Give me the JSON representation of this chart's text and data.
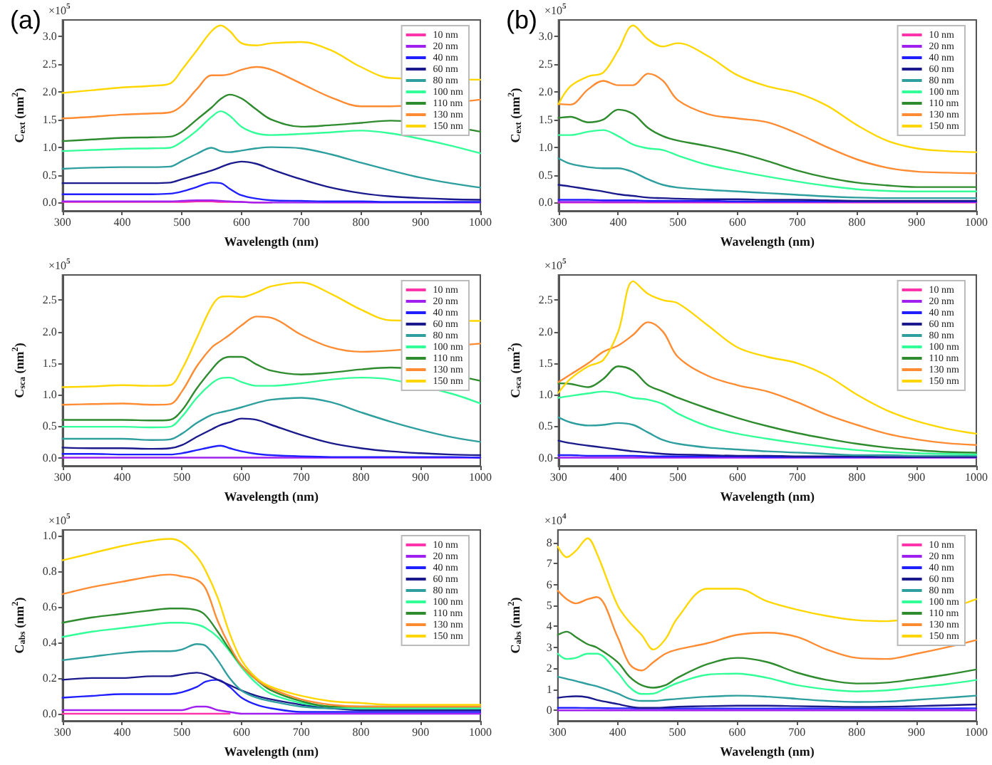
{
  "chart_data": [
    {
      "type": "line",
      "title": "(a)",
      "xlabel": "Wavelength (nm)",
      "ylabel": "C$_{ext}$ (nm$^{2}$)",
      "annotations": [
        "×10$^{5}$"
      ],
      "legend": "top right",
      "marker": "none",
      "xlim": [
        300,
        1000
      ],
      "xticks": [
        300,
        400,
        500,
        600,
        700,
        800,
        900,
        1000
      ],
      "ylim": [
        -0.15,
        3.3
      ],
      "yticks": [
        {
          "value": 0,
          "label": "0.0"
        },
        {
          "value": 0.5,
          "label": "0.5"
        },
        {
          "value": 1,
          "label": "1.0"
        },
        {
          "value": 1.5,
          "label": "1.5"
        },
        {
          "value": 2,
          "label": "2.0"
        },
        {
          "value": 2.5,
          "label": "2.5"
        },
        {
          "value": 3,
          "label": "3.0"
        }
      ],
      "x": [
        300,
        350,
        400,
        450,
        480,
        500,
        525,
        550,
        565,
        580,
        600,
        625,
        650,
        700,
        750,
        800,
        850,
        900,
        950,
        1000
      ],
      "series": [
        {
          "name": "10 nm",
          "color": "#ff33aa",
          "values": [
            0.01,
            0.01,
            0.01,
            0.01,
            0.01,
            0.01,
            0.02,
            0.02,
            0.01,
            0.01,
            0.01,
            0,
            0,
            null,
            null,
            null,
            null,
            null,
            null,
            null
          ]
        },
        {
          "name": "20 nm",
          "color": "#a020f0",
          "values": [
            0.02,
            0.02,
            0.02,
            0.02,
            0.02,
            0.03,
            0.04,
            0.04,
            0.03,
            0.02,
            0.01,
            0,
            0,
            0,
            0,
            0,
            0,
            0,
            0,
            0
          ]
        },
        {
          "name": "40 nm",
          "color": "#1f1fff",
          "values": [
            0.15,
            0.15,
            0.15,
            0.15,
            0.16,
            0.2,
            0.28,
            0.36,
            0.35,
            0.25,
            0.13,
            0.07,
            0.04,
            0.03,
            0.02,
            0.02,
            0.01,
            0.01,
            0.01,
            0.01
          ]
        },
        {
          "name": "60 nm",
          "color": "#1a1a8c",
          "values": [
            0.35,
            0.35,
            0.35,
            0.35,
            0.36,
            0.42,
            0.5,
            0.58,
            0.64,
            0.7,
            0.74,
            0.7,
            0.6,
            0.42,
            0.27,
            0.17,
            0.11,
            0.08,
            0.06,
            0.05
          ]
        },
        {
          "name": "80 nm",
          "color": "#2e9e9e",
          "values": [
            0.61,
            0.63,
            0.64,
            0.64,
            0.65,
            0.75,
            0.88,
            0.99,
            0.93,
            0.91,
            0.94,
            0.98,
            1.0,
            0.98,
            0.87,
            0.72,
            0.58,
            0.45,
            0.35,
            0.27
          ]
        },
        {
          "name": "100 nm",
          "color": "#33ff99",
          "values": [
            0.93,
            0.95,
            0.97,
            0.98,
            0.99,
            1.1,
            1.3,
            1.55,
            1.65,
            1.57,
            1.37,
            1.25,
            1.22,
            1.24,
            1.27,
            1.3,
            1.25,
            1.15,
            1.03,
            0.89
          ]
        },
        {
          "name": "110 nm",
          "color": "#2e8b2e",
          "values": [
            1.11,
            1.14,
            1.17,
            1.18,
            1.19,
            1.28,
            1.5,
            1.72,
            1.87,
            1.95,
            1.88,
            1.68,
            1.5,
            1.37,
            1.4,
            1.44,
            1.48,
            null,
            null,
            1.28
          ]
        },
        {
          "name": "130 nm",
          "color": "#ff8c33",
          "values": [
            1.52,
            1.55,
            1.59,
            1.61,
            1.63,
            1.75,
            2.05,
            2.3,
            2.3,
            2.32,
            2.4,
            2.45,
            2.4,
            2.15,
            1.9,
            1.74,
            1.74,
            null,
            null,
            1.86
          ]
        },
        {
          "name": "150 nm",
          "color": "#ffd700",
          "values": [
            1.98,
            2.03,
            2.08,
            2.11,
            2.15,
            2.4,
            2.75,
            3.1,
            3.2,
            3.1,
            2.88,
            2.84,
            2.88,
            2.9,
            2.75,
            2.45,
            2.25,
            null,
            null,
            2.22
          ]
        }
      ]
    },
    {
      "type": "line",
      "title": "(b)",
      "xlabel": "Wavelength (nm)",
      "ylabel": "C$_{ext}$ (nm$^{2}$)",
      "annotations": [
        "×10$^{5}$"
      ],
      "legend": "top right",
      "marker": "none",
      "xlim": [
        300,
        1000
      ],
      "xticks": [
        300,
        400,
        500,
        600,
        700,
        800,
        900,
        1000
      ],
      "ylim": [
        -0.15,
        3.3
      ],
      "yticks": [
        {
          "value": 0,
          "label": "0.0"
        },
        {
          "value": 0.5,
          "label": "0.5"
        },
        {
          "value": 1,
          "label": "1.0"
        },
        {
          "value": 1.5,
          "label": "1.5"
        },
        {
          "value": 2,
          "label": "2.0"
        },
        {
          "value": 2.5,
          "label": "2.5"
        },
        {
          "value": 3,
          "label": "3.0"
        }
      ],
      "x": [
        300,
        320,
        350,
        375,
        400,
        425,
        450,
        475,
        500,
        550,
        600,
        650,
        700,
        750,
        800,
        850,
        900,
        950,
        1000
      ],
      "series": [
        {
          "name": "10 nm",
          "color": "#ff33aa",
          "values": [
            0,
            0,
            0,
            0,
            0,
            0,
            0,
            0,
            0,
            0,
            0,
            0,
            0,
            0,
            0,
            0,
            0,
            0,
            0
          ]
        },
        {
          "name": "20 nm",
          "color": "#a020f0",
          "values": [
            0.01,
            0.01,
            0.01,
            0.01,
            0.01,
            0.01,
            0.01,
            0.01,
            0.01,
            0.01,
            0.01,
            0.01,
            0.01,
            0.01,
            0.01,
            0.01,
            0.01,
            0.01,
            0.01
          ]
        },
        {
          "name": "40 nm",
          "color": "#1f1fff",
          "values": [
            0.05,
            0.05,
            0.05,
            0.04,
            0.04,
            0.04,
            0.03,
            0.03,
            0.03,
            0.03,
            0.02,
            0.02,
            0.02,
            0.02,
            0.02,
            0.02,
            0.02,
            0.02,
            0.02
          ]
        },
        {
          "name": "60 nm",
          "color": "#1a1a8c",
          "values": [
            0.32,
            0.29,
            0.24,
            0.2,
            0.15,
            0.12,
            0.09,
            0.08,
            0.07,
            0.06,
            0.06,
            0.05,
            0.05,
            0.04,
            0.03,
            0.03,
            0.03,
            0.03,
            0.03
          ]
        },
        {
          "name": "80 nm",
          "color": "#2e9e9e",
          "values": [
            0.8,
            0.7,
            0.64,
            0.62,
            0.62,
            0.55,
            0.42,
            0.32,
            0.27,
            0.23,
            0.2,
            0.17,
            0.14,
            0.11,
            0.09,
            0.08,
            0.08,
            0.08,
            0.08
          ]
        },
        {
          "name": "100 nm",
          "color": "#33ff99",
          "values": [
            1.22,
            1.22,
            1.28,
            1.31,
            1.2,
            1.05,
            0.98,
            0.95,
            0.85,
            0.68,
            0.57,
            0.47,
            0.38,
            0.3,
            0.24,
            0.21,
            0.2,
            0.2,
            0.2
          ]
        },
        {
          "name": "110 nm",
          "color": "#2e8b2e",
          "values": [
            1.53,
            1.55,
            1.45,
            1.5,
            1.68,
            1.6,
            1.35,
            1.2,
            1.12,
            1.02,
            0.9,
            0.75,
            0.58,
            0.45,
            0.36,
            0.31,
            0.28,
            0.28,
            0.28
          ]
        },
        {
          "name": "130 nm",
          "color": "#ff8c33",
          "values": [
            1.78,
            1.77,
            2.05,
            2.2,
            2.12,
            2.12,
            2.33,
            2.2,
            1.85,
            1.6,
            1.52,
            1.45,
            1.25,
            1.0,
            0.78,
            0.63,
            0.56,
            0.54,
            0.53
          ]
        },
        {
          "name": "150 nm",
          "color": "#ffd700",
          "values": [
            1.78,
            2.1,
            2.28,
            2.35,
            2.75,
            3.2,
            2.95,
            2.82,
            2.88,
            2.65,
            2.3,
            2.1,
            1.98,
            1.75,
            1.4,
            1.12,
            0.98,
            0.93,
            0.91
          ]
        }
      ]
    },
    {
      "type": "line",
      "xlabel": "Wavelength (nm)",
      "ylabel": "C$_{sca}$ (nm$^{2}$)",
      "annotations": [
        "×10$^{5}$"
      ],
      "legend": "top right",
      "marker": "none",
      "xlim": [
        300,
        1000
      ],
      "xticks": [
        300,
        400,
        500,
        600,
        700,
        800,
        900,
        1000
      ],
      "ylim": [
        -0.13,
        2.9
      ],
      "yticks": [
        {
          "value": 0,
          "label": "0.0"
        },
        {
          "value": 0.5,
          "label": "0.5"
        },
        {
          "value": 1,
          "label": "1.0"
        },
        {
          "value": 1.5,
          "label": "1.5"
        },
        {
          "value": 2,
          "label": "2.0"
        },
        {
          "value": 2.5,
          "label": "2.5"
        }
      ],
      "x": [
        300,
        350,
        400,
        450,
        480,
        500,
        525,
        550,
        565,
        580,
        600,
        625,
        650,
        700,
        750,
        800,
        850,
        900,
        950,
        1000
      ],
      "series": [
        {
          "name": "10 nm",
          "color": "#ff33aa",
          "values": [
            null,
            null,
            null,
            null,
            null,
            null,
            null,
            null,
            null,
            null,
            null,
            null,
            null,
            null,
            null,
            null,
            null,
            null,
            null,
            null
          ]
        },
        {
          "name": "20 nm",
          "color": "#a020f0",
          "values": [
            0,
            0,
            0,
            0,
            0,
            0,
            0,
            0,
            0,
            0,
            0,
            0,
            0,
            0,
            0,
            0,
            0,
            0,
            0,
            0
          ]
        },
        {
          "name": "40 nm",
          "color": "#1f1fff",
          "values": [
            0.06,
            0.06,
            0.05,
            0.05,
            0.05,
            0.07,
            0.12,
            0.17,
            0.19,
            0.15,
            0.1,
            0.06,
            0.04,
            0.02,
            0.01,
            0.01,
            0.01,
            0.01,
            0.01,
            0
          ]
        },
        {
          "name": "60 nm",
          "color": "#1a1a8c",
          "values": [
            0.16,
            0.15,
            0.15,
            0.14,
            0.15,
            0.2,
            0.33,
            0.45,
            0.52,
            0.56,
            0.62,
            0.6,
            0.52,
            0.36,
            0.23,
            0.15,
            0.1,
            0.07,
            0.05,
            0.04
          ]
        },
        {
          "name": "80 nm",
          "color": "#2e9e9e",
          "values": [
            0.3,
            0.3,
            0.3,
            0.28,
            0.29,
            0.38,
            0.55,
            0.68,
            0.72,
            0.75,
            0.8,
            0.87,
            0.92,
            0.95,
            0.88,
            0.72,
            0.57,
            0.44,
            0.33,
            0.25
          ]
        },
        {
          "name": "100 nm",
          "color": "#33ff99",
          "values": [
            0.49,
            0.49,
            0.49,
            0.48,
            0.49,
            0.65,
            0.95,
            1.18,
            1.26,
            1.27,
            1.2,
            1.14,
            1.14,
            1.18,
            1.24,
            1.27,
            1.24,
            null,
            1.02,
            0.86
          ]
        },
        {
          "name": "110 nm",
          "color": "#2e8b2e",
          "values": [
            0.6,
            0.6,
            0.6,
            0.59,
            0.6,
            0.75,
            1.1,
            1.4,
            1.55,
            1.6,
            1.6,
            1.48,
            1.38,
            1.32,
            1.35,
            1.4,
            1.43,
            null,
            null,
            1.22
          ]
        },
        {
          "name": "130 nm",
          "color": "#ff8c33",
          "values": [
            0.84,
            0.85,
            0.86,
            0.84,
            0.85,
            1.05,
            1.45,
            1.75,
            1.85,
            1.95,
            2.1,
            2.24,
            2.22,
            1.95,
            1.75,
            1.68,
            1.7,
            null,
            null,
            1.81
          ]
        },
        {
          "name": "150 nm",
          "color": "#ffd700",
          "values": [
            1.12,
            1.13,
            1.15,
            1.14,
            1.15,
            1.4,
            1.9,
            2.4,
            2.55,
            2.56,
            2.55,
            2.62,
            2.72,
            2.78,
            2.6,
            2.35,
            2.18,
            null,
            null,
            2.17
          ]
        }
      ]
    },
    {
      "type": "line",
      "xlabel": "Wavelength (nm)",
      "ylabel": "C$_{sca}$ (nm$^{2}$)",
      "annotations": [
        "×10$^{5}$"
      ],
      "legend": "top right",
      "marker": "none",
      "xlim": [
        300,
        1000
      ],
      "xticks": [
        300,
        400,
        500,
        600,
        700,
        800,
        900,
        1000
      ],
      "ylim": [
        -0.13,
        2.9
      ],
      "yticks": [
        {
          "value": 0,
          "label": "0.0"
        },
        {
          "value": 0.5,
          "label": "0.5"
        },
        {
          "value": 1,
          "label": "1.0"
        },
        {
          "value": 1.5,
          "label": "1.5"
        },
        {
          "value": 2,
          "label": "2.0"
        },
        {
          "value": 2.5,
          "label": "2.5"
        }
      ],
      "x": [
        300,
        320,
        350,
        375,
        400,
        425,
        450,
        475,
        500,
        550,
        600,
        650,
        700,
        750,
        800,
        850,
        900,
        950,
        1000
      ],
      "series": [
        {
          "name": "10 nm",
          "color": "#ff33aa",
          "values": [
            null,
            null,
            null,
            null,
            null,
            null,
            null,
            null,
            null,
            null,
            null,
            null,
            null,
            null,
            null,
            null,
            null,
            null,
            null
          ]
        },
        {
          "name": "20 nm",
          "color": "#a020f0",
          "values": [
            0,
            0,
            0,
            0,
            0,
            0,
            0,
            0,
            0,
            0,
            0,
            0,
            0,
            0,
            0,
            0,
            0,
            0,
            0
          ]
        },
        {
          "name": "40 nm",
          "color": "#1f1fff",
          "values": [
            0.04,
            0.04,
            0.03,
            0.03,
            0.03,
            0.03,
            0.02,
            0.02,
            0.02,
            0.02,
            0.02,
            0.01,
            0.01,
            0.01,
            0.01,
            0.01,
            0.01,
            null,
            null
          ]
        },
        {
          "name": "60 nm",
          "color": "#1a1a8c",
          "values": [
            0.27,
            0.23,
            0.19,
            0.16,
            0.13,
            0.1,
            0.08,
            0.06,
            0.05,
            0.04,
            0.03,
            0.03,
            0.02,
            0.02,
            0.02,
            0.01,
            0.01,
            0.01,
            0.01
          ]
        },
        {
          "name": "80 nm",
          "color": "#2e9e9e",
          "values": [
            0.64,
            0.56,
            0.51,
            0.52,
            0.55,
            0.52,
            0.4,
            0.28,
            0.22,
            0.16,
            0.13,
            0.1,
            0.08,
            0.06,
            0.04,
            0.04,
            0.03,
            0.03,
            0.03
          ]
        },
        {
          "name": "100 nm",
          "color": "#33ff99",
          "values": [
            0.95,
            0.98,
            1.02,
            1.05,
            1.02,
            0.95,
            0.92,
            0.85,
            0.7,
            0.5,
            0.38,
            0.3,
            0.23,
            0.17,
            0.12,
            0.09,
            0.07,
            0.06,
            0.05
          ]
        },
        {
          "name": "110 nm",
          "color": "#2e8b2e",
          "values": [
            1.18,
            1.17,
            1.12,
            1.25,
            1.45,
            1.38,
            1.15,
            1.05,
            0.95,
            0.78,
            0.63,
            0.5,
            0.39,
            0.3,
            0.22,
            0.16,
            0.12,
            0.09,
            0.08
          ]
        },
        {
          "name": "130 nm",
          "color": "#ff8c33",
          "values": [
            1.2,
            1.32,
            1.5,
            1.68,
            1.78,
            1.95,
            2.15,
            2.0,
            1.6,
            1.3,
            1.15,
            1.05,
            0.88,
            0.68,
            0.52,
            0.38,
            0.29,
            0.23,
            0.2
          ]
        },
        {
          "name": "150 nm",
          "color": "#ffd700",
          "values": [
            1.03,
            1.25,
            1.45,
            1.55,
            2.0,
            2.8,
            2.6,
            2.5,
            2.45,
            2.1,
            1.75,
            1.6,
            1.5,
            1.3,
            1.0,
            0.75,
            0.58,
            0.46,
            0.38
          ]
        }
      ]
    },
    {
      "type": "line",
      "xlabel": "Wavelength (nm)",
      "ylabel": "C$_{abs}$ (nm$^{2}$)",
      "annotations": [
        "×10$^{5}$"
      ],
      "legend": "top right",
      "marker": "none",
      "xlim": [
        300,
        1000
      ],
      "xticks": [
        300,
        400,
        500,
        600,
        700,
        800,
        900,
        1000
      ],
      "ylim": [
        -0.04,
        1.03
      ],
      "yticks": [
        {
          "value": 0,
          "label": "0.0"
        },
        {
          "value": 0.2,
          "label": "0.2"
        },
        {
          "value": 0.4,
          "label": "0.4"
        },
        {
          "value": 0.6,
          "label": "0.6"
        },
        {
          "value": 0.8,
          "label": "0.8"
        },
        {
          "value": 1,
          "label": "1.0"
        }
      ],
      "x": [
        300,
        350,
        400,
        450,
        480,
        500,
        525,
        540,
        560,
        580,
        600,
        625,
        650,
        700,
        750,
        800,
        850,
        900,
        950,
        1000
      ],
      "series": [
        {
          "name": "10 nm",
          "color": "#ff33aa",
          "values": [
            0,
            0,
            0,
            0,
            0,
            0,
            0,
            0,
            0,
            0,
            null,
            null,
            null,
            null,
            null,
            null,
            null,
            null,
            null,
            null
          ]
        },
        {
          "name": "20 nm",
          "color": "#a020f0",
          "values": [
            0.02,
            0.02,
            0.02,
            0.02,
            0.02,
            0.02,
            0.04,
            0.04,
            0.02,
            0.01,
            0,
            0,
            0,
            0,
            0,
            0,
            0,
            0,
            0,
            0
          ]
        },
        {
          "name": "40 nm",
          "color": "#1f1fff",
          "values": [
            0.09,
            0.1,
            0.11,
            0.11,
            0.11,
            0.12,
            0.15,
            0.18,
            0.19,
            0.15,
            0.09,
            0.05,
            0.03,
            0.01,
            0.01,
            0.01,
            0.01,
            0.01,
            0.01,
            0.01
          ]
        },
        {
          "name": "60 nm",
          "color": "#1a1a8c",
          "values": [
            0.19,
            0.2,
            0.2,
            0.21,
            0.21,
            0.22,
            0.23,
            0.22,
            0.19,
            0.16,
            0.13,
            0.1,
            0.08,
            0.05,
            0.03,
            0.02,
            0.02,
            0.02,
            0.02,
            0.02
          ]
        },
        {
          "name": "80 nm",
          "color": "#2e9e9e",
          "values": [
            0.3,
            0.32,
            0.34,
            0.35,
            0.35,
            0.36,
            0.39,
            0.38,
            0.3,
            0.2,
            0.13,
            0.09,
            0.07,
            0.04,
            0.03,
            0.03,
            0.03,
            0.03,
            0.03,
            0.03
          ]
        },
        {
          "name": "100 nm",
          "color": "#33ff99",
          "values": [
            0.43,
            0.46,
            0.48,
            0.5,
            0.51,
            0.51,
            0.5,
            0.48,
            0.43,
            0.35,
            0.26,
            0.17,
            0.11,
            0.06,
            0.04,
            0.03,
            0.03,
            0.03,
            0.03,
            0.03
          ]
        },
        {
          "name": "110 nm",
          "color": "#2e8b2e",
          "values": [
            0.51,
            0.54,
            0.56,
            0.58,
            0.59,
            0.59,
            0.58,
            0.55,
            0.46,
            0.36,
            0.27,
            0.19,
            0.13,
            0.07,
            0.04,
            0.04,
            0.04,
            0.04,
            0.04,
            0.04
          ]
        },
        {
          "name": "130 nm",
          "color": "#ff8c33",
          "values": [
            0.67,
            0.71,
            0.74,
            0.77,
            0.78,
            0.77,
            0.75,
            0.7,
            0.52,
            0.38,
            0.27,
            0.19,
            0.14,
            0.08,
            0.05,
            0.04,
            0.04,
            0.04,
            0.04,
            0.04
          ]
        },
        {
          "name": "150 nm",
          "color": "#ffd700",
          "values": [
            0.86,
            0.9,
            0.94,
            0.97,
            0.98,
            0.96,
            0.88,
            0.8,
            0.65,
            0.45,
            0.3,
            0.2,
            0.15,
            0.1,
            0.07,
            0.06,
            0.05,
            0.05,
            0.05,
            0.05
          ]
        }
      ]
    },
    {
      "type": "line",
      "xlabel": "Wavelength (nm)",
      "ylabel": "C$_{abs}$ (nm$^{2}$)",
      "annotations": [
        "×10$^{4}$"
      ],
      "legend": "top right",
      "marker": "none",
      "xlim": [
        300,
        1000
      ],
      "xticks": [
        300,
        400,
        500,
        600,
        700,
        800,
        900,
        1000
      ],
      "ylim": [
        -0.5,
        8.6
      ],
      "yticks": [
        0,
        1,
        2,
        3,
        4,
        5,
        6,
        7,
        8
      ],
      "x": [
        300,
        315,
        330,
        350,
        365,
        400,
        420,
        440,
        460,
        480,
        500,
        550,
        600,
        650,
        700,
        750,
        800,
        850,
        900,
        950,
        1000
      ],
      "series": [
        {
          "name": "10 nm",
          "color": "#ff33aa",
          "values": [
            null,
            null,
            null,
            null,
            null,
            null,
            null,
            null,
            null,
            null,
            null,
            null,
            null,
            null,
            null,
            null,
            null,
            null,
            null,
            null,
            null
          ]
        },
        {
          "name": "20 nm",
          "color": "#a020f0",
          "values": [
            0,
            0,
            0,
            0,
            0,
            0,
            0,
            0,
            0,
            0,
            0,
            0,
            0,
            0,
            0,
            0,
            0,
            0,
            0,
            0,
            0
          ]
        },
        {
          "name": "40 nm",
          "color": "#1f1fff",
          "values": [
            0.12,
            0.12,
            0.12,
            0.11,
            0.11,
            0.1,
            0.1,
            0.09,
            0.09,
            0.09,
            0.09,
            0.09,
            0.09,
            0.09,
            0.09,
            0.09,
            0.09,
            0.09,
            0.09,
            0.09,
            0.1
          ]
        },
        {
          "name": "60 nm",
          "color": "#1a1a8c",
          "values": [
            0.6,
            0.65,
            0.67,
            0.62,
            0.5,
            0.3,
            0.18,
            0.12,
            0.12,
            0.14,
            0.17,
            0.2,
            0.22,
            0.22,
            0.2,
            0.18,
            0.16,
            0.17,
            0.2,
            0.24,
            0.28
          ]
        },
        {
          "name": "80 nm",
          "color": "#2e9e9e",
          "values": [
            1.6,
            1.5,
            1.4,
            1.25,
            1.15,
            0.8,
            0.55,
            0.45,
            0.45,
            0.5,
            0.55,
            0.65,
            0.7,
            0.65,
            0.55,
            0.45,
            0.4,
            0.42,
            0.5,
            0.6,
            0.7
          ]
        },
        {
          "name": "100 nm",
          "color": "#33ff99",
          "values": [
            2.7,
            2.45,
            2.5,
            2.7,
            2.7,
            1.8,
            1.1,
            0.78,
            0.8,
            1.05,
            1.3,
            1.7,
            1.75,
            1.55,
            1.2,
            1.0,
            0.9,
            0.95,
            1.1,
            1.25,
            1.45
          ]
        },
        {
          "name": "110 nm",
          "color": "#2e8b2e",
          "values": [
            3.6,
            3.75,
            3.5,
            3.15,
            3.0,
            2.3,
            1.6,
            1.2,
            1.08,
            1.2,
            1.55,
            2.2,
            2.5,
            2.3,
            1.8,
            1.45,
            1.28,
            1.32,
            1.5,
            1.7,
            1.95
          ]
        },
        {
          "name": "130 nm",
          "color": "#ff8c33",
          "values": [
            5.7,
            5.3,
            5.1,
            5.3,
            5.4,
            3.5,
            2.2,
            1.9,
            2.3,
            2.7,
            2.9,
            3.2,
            3.6,
            3.7,
            3.5,
            2.9,
            2.5,
            2.45,
            2.7,
            3.0,
            3.35
          ]
        },
        {
          "name": "150 nm",
          "color": "#ffd700",
          "values": [
            7.8,
            7.3,
            7.6,
            8.2,
            7.5,
            5.0,
            4.2,
            3.6,
            2.9,
            3.4,
            4.4,
            5.8,
            5.8,
            5.2,
            4.8,
            4.5,
            4.3,
            4.25,
            null,
            null,
            5.3
          ]
        }
      ]
    }
  ]
}
